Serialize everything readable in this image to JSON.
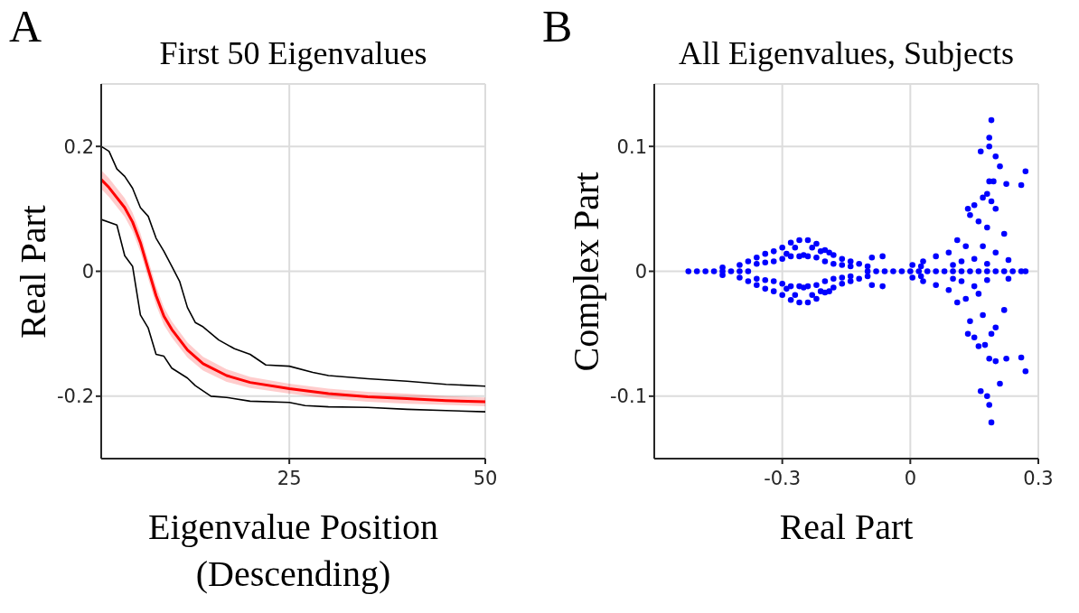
{
  "chart_data": [
    {
      "type": "line",
      "title": "First 50 Eigenvalues",
      "xlabel": "Eigenvalue Position (Descending)",
      "ylabel": "Real Part",
      "annotations": [
        "A"
      ],
      "xlim": [
        1,
        50
      ],
      "xticks": [
        25,
        50
      ],
      "ylim": [
        -0.3,
        0.3
      ],
      "yticks": [
        -0.2,
        0,
        0.2
      ],
      "grid": true,
      "marker": "none",
      "line_style": "solid",
      "series": [
        {
          "color": "#000000",
          "x": [
            1,
            2,
            3,
            4,
            5,
            6,
            7,
            8,
            9,
            10,
            11,
            12,
            13,
            14,
            16,
            18,
            20,
            22,
            25,
            28,
            30,
            35,
            40,
            45,
            50
          ],
          "values": [
            0.2,
            0.192,
            0.164,
            0.152,
            0.133,
            0.102,
            0.088,
            0.053,
            0.032,
            0.008,
            -0.016,
            -0.058,
            -0.082,
            -0.089,
            -0.11,
            -0.124,
            -0.133,
            -0.15,
            -0.152,
            -0.162,
            -0.167,
            -0.172,
            -0.176,
            -0.181,
            -0.184
          ]
        },
        {
          "color": "#ff0000",
          "x": [
            1,
            2,
            4,
            5,
            6,
            7,
            8,
            9,
            10,
            12,
            14,
            17,
            20,
            25,
            30,
            35,
            40,
            45,
            50
          ],
          "values": [
            0.147,
            0.134,
            0.102,
            0.079,
            0.046,
            0.003,
            -0.039,
            -0.072,
            -0.093,
            -0.126,
            -0.148,
            -0.167,
            -0.178,
            -0.188,
            -0.196,
            -0.201,
            -0.204,
            -0.207,
            -0.209
          ],
          "lower": [
            0.132,
            0.119,
            0.087,
            0.064,
            0.031,
            -0.012,
            -0.054,
            -0.086,
            -0.106,
            -0.138,
            -0.159,
            -0.177,
            -0.187,
            -0.196,
            -0.204,
            -0.209,
            -0.212,
            -0.214,
            -0.216
          ],
          "upper": [
            0.162,
            0.149,
            0.117,
            0.094,
            0.061,
            0.018,
            -0.024,
            -0.058,
            -0.08,
            -0.114,
            -0.137,
            -0.157,
            -0.169,
            -0.18,
            -0.188,
            -0.193,
            -0.196,
            -0.2,
            -0.202
          ]
        },
        {
          "color": "#000000",
          "x": [
            1,
            3,
            4,
            5,
            6,
            7,
            8,
            9,
            10,
            12,
            13,
            15,
            17,
            20,
            25,
            27,
            30,
            35,
            40,
            45,
            50
          ],
          "values": [
            0.083,
            0.074,
            0.025,
            0.008,
            -0.07,
            -0.091,
            -0.133,
            -0.136,
            -0.155,
            -0.171,
            -0.183,
            -0.2,
            -0.202,
            -0.208,
            -0.21,
            -0.215,
            -0.217,
            -0.218,
            -0.221,
            -0.223,
            -0.225
          ]
        }
      ]
    },
    {
      "type": "scatter",
      "title": "All Eigenvalues, Subjects",
      "xlabel": "Real Part",
      "ylabel": "Complex Part",
      "annotations": [
        "B"
      ],
      "xlim": [
        -0.6,
        0.3
      ],
      "xticks": [
        -0.3,
        0,
        0.3
      ],
      "ylim": [
        -0.15,
        0.15
      ],
      "yticks": [
        -0.1,
        0,
        0.1
      ],
      "grid": true,
      "marker": "circle",
      "series": [
        {
          "color": "#0000ff",
          "x": [
            -0.52,
            -0.5,
            -0.48,
            -0.46,
            -0.44,
            -0.42,
            -0.4,
            -0.38,
            -0.1,
            -0.08,
            -0.06,
            -0.04,
            -0.02,
            0,
            0.02,
            0.04,
            0.06,
            0.08,
            0.1,
            0.12,
            0.14,
            0.16,
            0.18,
            0.2,
            0.22,
            0.24,
            0.26,
            0.27,
            -0.44,
            -0.44,
            -0.4,
            -0.4,
            -0.38,
            -0.38,
            -0.36,
            -0.36,
            -0.34,
            -0.34,
            -0.32,
            -0.32,
            -0.3,
            -0.3,
            -0.28,
            -0.28,
            -0.26,
            -0.26,
            -0.24,
            -0.24,
            -0.22,
            -0.22,
            -0.2,
            -0.2,
            -0.18,
            -0.18,
            -0.16,
            -0.16,
            -0.14,
            -0.14,
            -0.12,
            -0.12,
            -0.1,
            -0.1,
            -0.36,
            -0.36,
            -0.34,
            -0.34,
            -0.32,
            -0.32,
            -0.3,
            -0.3,
            -0.28,
            -0.28,
            -0.26,
            -0.26,
            -0.25,
            -0.25,
            -0.24,
            -0.24,
            -0.22,
            -0.22,
            -0.2,
            -0.2,
            -0.18,
            -0.18,
            -0.16,
            -0.16,
            -0.14,
            -0.14,
            -0.27,
            -0.27,
            -0.23,
            -0.23,
            -0.29,
            -0.29,
            -0.21,
            -0.21,
            -0.19,
            -0.19,
            -0.09,
            -0.09,
            -0.065,
            -0.065,
            0.19,
            0.185,
            0.185,
            0.165,
            0.2,
            0.21,
            0.185,
            0.195,
            0.225,
            0.27,
            0.26,
            0.18,
            0.17,
            0.19,
            0.135,
            0.15,
            0.2,
            0.16,
            0.14,
            0.18,
            0.22,
            0.11,
            0.13,
            0.17,
            0.2,
            0.09,
            0.06,
            0.03,
            0.12,
            0.15,
            0.23,
            0.005,
            0.025,
            0.1,
            0.18,
            0.19,
            0.185,
            0.165,
            0.18,
            0.21,
            0.2,
            0.185,
            0.27,
            0.26,
            0.225,
            0.16,
            0.175,
            0.135,
            0.15,
            0.19,
            0.2,
            0.14,
            0.17,
            0.22,
            0.11,
            0.13,
            0.16,
            0.09,
            0.06,
            0.03,
            0.12,
            0.15,
            0.23,
            0.005,
            0.025,
            0.1,
            0.18
          ],
          "values": [
            0,
            0,
            0,
            0,
            0,
            0,
            0,
            0,
            0,
            0,
            0,
            0,
            0,
            0,
            0,
            0,
            0,
            0,
            0,
            0,
            0,
            0,
            0,
            0,
            0,
            0,
            0,
            0,
            0.003,
            -0.003,
            0.005,
            -0.005,
            0.008,
            -0.008,
            0.011,
            -0.011,
            0.014,
            -0.014,
            0.016,
            -0.016,
            0.019,
            -0.019,
            0.023,
            -0.023,
            0.025,
            -0.025,
            0.025,
            -0.025,
            0.022,
            -0.022,
            0.017,
            -0.017,
            0.013,
            -0.013,
            0.01,
            -0.01,
            0.008,
            -0.008,
            0.006,
            -0.006,
            0.004,
            -0.004,
            0.006,
            -0.006,
            0.007,
            -0.007,
            0.008,
            -0.008,
            0.01,
            -0.01,
            0.012,
            -0.012,
            0.012,
            -0.012,
            0.013,
            -0.013,
            0.012,
            -0.012,
            0.011,
            -0.011,
            0.008,
            -0.008,
            0.006,
            -0.006,
            0.005,
            -0.005,
            0.004,
            -0.004,
            0.019,
            -0.019,
            0.019,
            -0.019,
            0.014,
            -0.014,
            0.016,
            -0.016,
            0.015,
            -0.016,
            0.011,
            -0.011,
            0.012,
            -0.012,
            0.121,
            0.107,
            0.1,
            0.096,
            0.092,
            0.084,
            0.072,
            0.072,
            0.07,
            0.08,
            0.069,
            0.062,
            0.059,
            0.056,
            0.05,
            0.053,
            0.05,
            0.04,
            0.045,
            0.035,
            0.03,
            0.025,
            0.02,
            0.02,
            0.015,
            0.015,
            0.012,
            0.008,
            0.008,
            0.01,
            0.009,
            0.005,
            0.004,
            0.005,
            0.006,
            -0.121,
            -0.107,
            -0.096,
            -0.1,
            -0.09,
            -0.072,
            -0.07,
            -0.08,
            -0.069,
            -0.07,
            -0.06,
            -0.059,
            -0.05,
            -0.053,
            -0.05,
            -0.045,
            -0.04,
            -0.035,
            -0.031,
            -0.025,
            -0.022,
            -0.018,
            -0.015,
            -0.011,
            -0.008,
            -0.008,
            -0.012,
            -0.006,
            -0.005,
            -0.004,
            -0.006,
            -0.007
          ]
        }
      ]
    }
  ]
}
